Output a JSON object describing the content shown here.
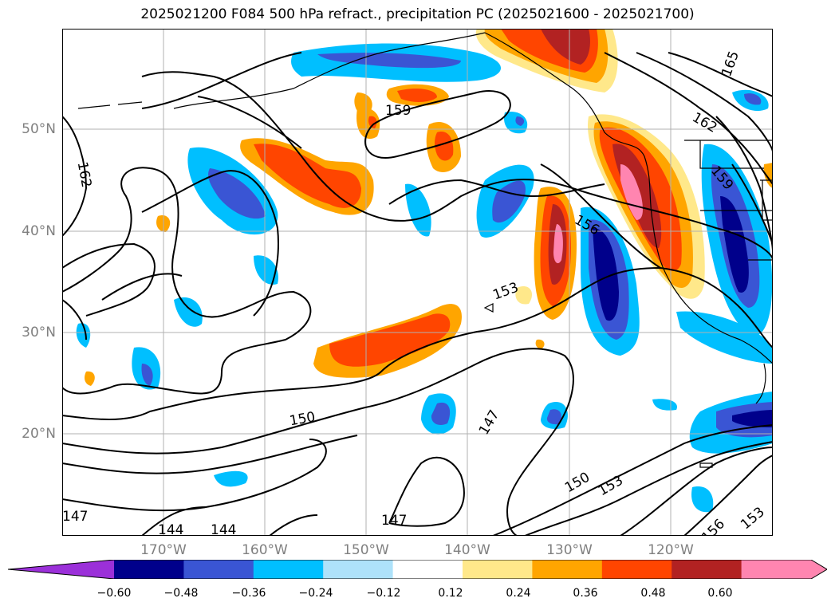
{
  "title": "2025021200 F084 500 hPa refract., precipitation PC (2025021600 - 2025021700)",
  "lat_labels": [
    "50°N",
    "40°N",
    "30°N",
    "20°N"
  ],
  "lon_labels": [
    "170°W",
    "160°W",
    "150°W",
    "140°W",
    "130°W",
    "120°W"
  ],
  "contour_labels": [
    "165",
    "162",
    "162",
    "159",
    "159",
    "156",
    "153",
    "150",
    "147",
    "150",
    "153",
    "147",
    "147",
    "144",
    "144",
    "156",
    "153"
  ],
  "colorbar": {
    "ticks": [
      "−0.60",
      "−0.48",
      "−0.36",
      "−0.24",
      "−0.12",
      "0.12",
      "0.24",
      "0.36",
      "0.48",
      "0.60"
    ],
    "colors": [
      "#9b30d9",
      "#00008b",
      "#3a55d4",
      "#00bfff",
      "#aee2fa",
      "#ffffff",
      "#ffe88a",
      "#ffa500",
      "#ff4500",
      "#b22222",
      "#ff85b0"
    ]
  },
  "colors": {
    "contour": "#000000",
    "grid": "#b0b0b0",
    "coast": "#000000"
  }
}
